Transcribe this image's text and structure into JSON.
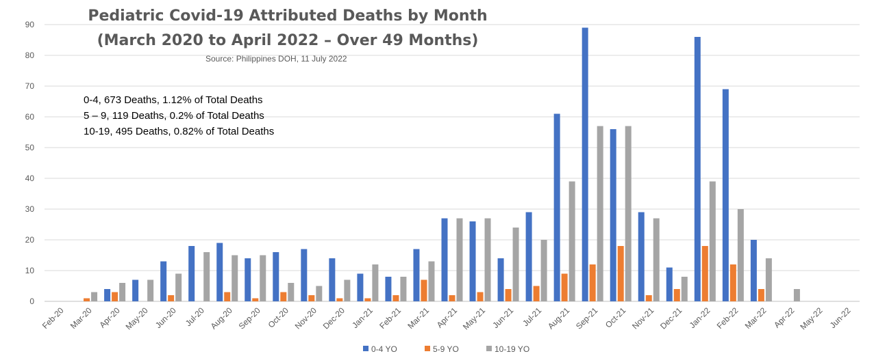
{
  "chart_data": {
    "type": "bar",
    "title": "Pediatric Covid-19 Attributed Deaths by Month",
    "subtitle": "(March 2020 to April 2022 – Over 49 Months)",
    "source": "Source: Philippines DOH, 11 July 2022",
    "annotations": [
      "0-4, 673 Deaths, 1.12% of Total Deaths",
      "5 – 9, 119 Deaths, 0.2% of Total Deaths",
      "10-19, 495 Deaths, 0.82% of Total Deaths"
    ],
    "categories": [
      "Feb-20",
      "Mar-20",
      "Apr-20",
      "May-20",
      "Jun-20",
      "Jul-20",
      "Aug-20",
      "Sep-20",
      "Oct-20",
      "Nov-20",
      "Dec-20",
      "Jan-21",
      "Feb-21",
      "Mar-21",
      "Apr-21",
      "May-21",
      "Jun-21",
      "Jul-21",
      "Aug-21",
      "Sep-21",
      "Oct-21",
      "Nov-21",
      "Dec-21",
      "Jan-22",
      "Feb-22",
      "Mar-22",
      "Apr-22",
      "May-22",
      "Jun-22"
    ],
    "series": [
      {
        "name": "0-4 YO",
        "color": "#4472C4",
        "values": [
          0,
          0,
          4,
          7,
          13,
          18,
          19,
          14,
          16,
          17,
          14,
          9,
          8,
          17,
          27,
          26,
          14,
          29,
          61,
          89,
          56,
          29,
          11,
          86,
          69,
          20,
          0,
          0,
          0
        ]
      },
      {
        "name": "5-9 YO",
        "color": "#ED7D31",
        "values": [
          0,
          1,
          3,
          0,
          2,
          0,
          3,
          1,
          3,
          2,
          1,
          1,
          2,
          7,
          2,
          3,
          4,
          5,
          9,
          12,
          18,
          2,
          4,
          18,
          12,
          4,
          0,
          0,
          0
        ]
      },
      {
        "name": "10-19 YO",
        "color": "#A5A5A5",
        "values": [
          0,
          3,
          6,
          7,
          9,
          16,
          15,
          15,
          6,
          5,
          7,
          12,
          8,
          13,
          27,
          27,
          24,
          20,
          39,
          57,
          57,
          27,
          8,
          39,
          30,
          14,
          4,
          0,
          0
        ]
      }
    ],
    "yticks": [
      0,
      10,
      20,
      30,
      40,
      50,
      60,
      70,
      80,
      90
    ],
    "ylim": [
      0,
      90
    ],
    "grid": true,
    "legend": "bottom"
  }
}
